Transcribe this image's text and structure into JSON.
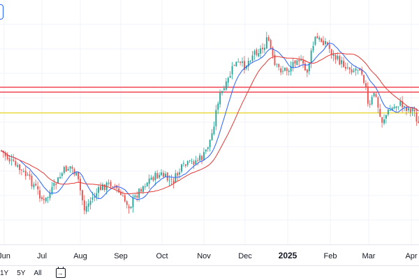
{
  "toolbar": {
    "ranges": [
      "1Y",
      "5Y",
      "All"
    ],
    "calendar_icon": "calendar-arrow-icon"
  },
  "colors": {
    "up": "#26a69a",
    "down": "#ef5350",
    "ma_fast": "#2962ff",
    "ma_slow": "#e53935",
    "hline_red": "#f23645",
    "hline_yellow": "#e8d635",
    "grid": "#f0f3fa"
  },
  "chart_data": {
    "type": "candlestick",
    "x_ticks": [
      "Jun",
      "Jul",
      "Aug",
      "Sep",
      "Oct",
      "Nov",
      "Dec",
      "2025",
      "Feb",
      "Mar",
      "Apr"
    ],
    "x_ticks_bold": [
      "2025"
    ],
    "grid": true,
    "horizontal_levels": [
      {
        "color": "red",
        "y_frac": 0.357
      },
      {
        "color": "red",
        "y_frac": 0.377
      },
      {
        "color": "yellow",
        "y_frac": 0.462
      }
    ],
    "indicators": [
      "moving-average-fast",
      "moving-average-slow"
    ]
  }
}
